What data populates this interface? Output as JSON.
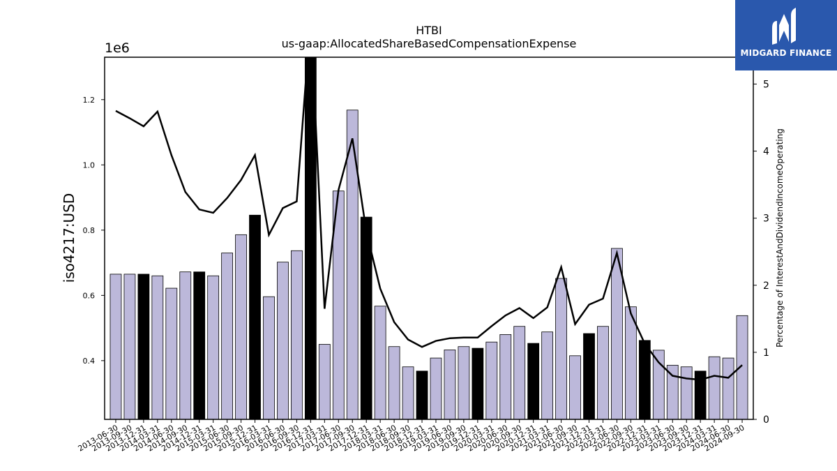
{
  "brand": {
    "name": "MIDGARD FINANCE",
    "color": "#2a58ad"
  },
  "chart_data": {
    "type": "bar",
    "title": "HTBI",
    "subtitle": "us-gaap:AllocatedShareBasedCompensationExpense",
    "ylabel": "iso4217:USD",
    "y_multiplier": "1e6",
    "y2label": "Percentage of InterestAndDividendIncomeOperating",
    "ylim": [
      220000,
      1330000
    ],
    "y2lim": [
      0,
      5.4
    ],
    "yticks": [
      "0.4",
      "0.6",
      "0.8",
      "1.0",
      "1.2"
    ],
    "y2ticks": [
      "0",
      "1",
      "2",
      "3",
      "4",
      "5"
    ],
    "bar_color": "#bcb8da",
    "highlight_color": "#000000",
    "line_color": "#000000",
    "categories": [
      "2013-06-30",
      "2013-09-30",
      "2013-12-31",
      "2014-03-31",
      "2014-06-30",
      "2014-09-30",
      "2014-12-31",
      "2015-03-31",
      "2015-06-30",
      "2015-09-30",
      "2015-12-31",
      "2016-03-31",
      "2016-06-30",
      "2016-09-30",
      "2016-12-31",
      "2017-03-31",
      "2017-06-30",
      "2017-09-30",
      "2017-12-31",
      "2018-03-31",
      "2018-06-30",
      "2018-09-30",
      "2018-12-31",
      "2019-03-31",
      "2019-06-30",
      "2019-09-30",
      "2019-12-31",
      "2020-03-31",
      "2020-06-30",
      "2020-09-30",
      "2020-12-31",
      "2021-03-31",
      "2021-06-30",
      "2021-09-30",
      "2021-12-31",
      "2022-03-31",
      "2022-06-30",
      "2022-09-30",
      "2022-12-31",
      "2023-03-31",
      "2023-06-30",
      "2023-09-30",
      "2023-12-31",
      "2024-03-31",
      "2024-06-30",
      "2024-09-30"
    ],
    "series": [
      {
        "type": "bar",
        "values": [
          665000,
          665000,
          665000,
          660000,
          622000,
          672000,
          672000,
          660000,
          730000,
          786000,
          846000,
          596000,
          702000,
          737000,
          1400000,
          450000,
          920000,
          1168000,
          840000,
          567000,
          443000,
          381000,
          368000,
          408000,
          433000,
          443000,
          438000,
          457000,
          480000,
          505000,
          453000,
          488000,
          652000,
          415000,
          483000,
          505000,
          744000,
          565000,
          462000,
          432000,
          386000,
          381000,
          368000,
          412000,
          408000,
          538000
        ],
        "highlight": [
          false,
          false,
          true,
          false,
          false,
          false,
          true,
          false,
          false,
          false,
          true,
          false,
          false,
          false,
          true,
          false,
          false,
          false,
          true,
          false,
          false,
          false,
          true,
          false,
          false,
          false,
          true,
          false,
          false,
          false,
          true,
          false,
          false,
          false,
          true,
          false,
          false,
          false,
          true,
          false,
          false,
          false,
          true,
          false,
          false,
          false
        ]
      },
      {
        "type": "line",
        "axis": "right",
        "values": [
          4.6,
          4.49,
          4.37,
          4.59,
          3.94,
          3.39,
          3.13,
          3.08,
          3.3,
          3.57,
          3.94,
          2.75,
          3.15,
          3.25,
          6.0,
          1.65,
          3.42,
          4.19,
          2.8,
          1.95,
          1.45,
          1.19,
          1.08,
          1.17,
          1.21,
          1.22,
          1.22,
          1.39,
          1.55,
          1.66,
          1.51,
          1.67,
          2.27,
          1.42,
          1.71,
          1.8,
          2.48,
          1.58,
          1.13,
          0.85,
          0.65,
          0.61,
          0.59,
          0.65,
          0.62,
          0.81
        ]
      }
    ],
    "grid": false,
    "legend": "none"
  }
}
